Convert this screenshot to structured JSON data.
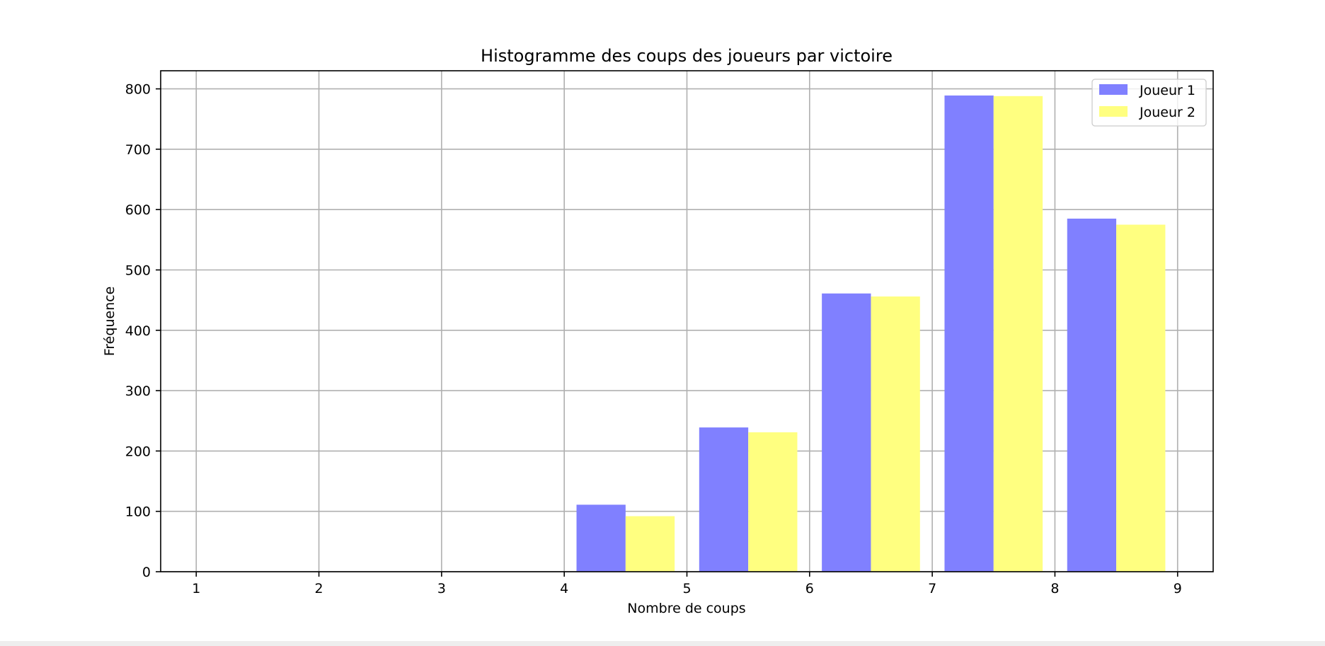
{
  "chart_data": {
    "type": "bar",
    "title": "Histogramme des coups des joueurs par victoire",
    "xlabel": "Nombre de coups",
    "ylabel": "Fréquence",
    "xlim": [
      0.71,
      9.29
    ],
    "ylim": [
      0,
      830
    ],
    "xticks": [
      1,
      2,
      3,
      4,
      5,
      6,
      7,
      8,
      9
    ],
    "yticks": [
      0,
      100,
      200,
      300,
      400,
      500,
      600,
      700,
      800
    ],
    "grid": true,
    "legend_position": "top-right",
    "bins": [
      [
        4.1,
        4.9
      ],
      [
        5.1,
        5.9
      ],
      [
        6.1,
        6.9
      ],
      [
        7.1,
        7.9
      ],
      [
        8.1,
        8.9
      ]
    ],
    "series": [
      {
        "name": "Joueur 1",
        "color": "#8080ff",
        "values": [
          111,
          239,
          461,
          789,
          585
        ]
      },
      {
        "name": "Joueur 2",
        "color": "#ffff80",
        "values": [
          92,
          231,
          456,
          788,
          575
        ]
      }
    ]
  }
}
